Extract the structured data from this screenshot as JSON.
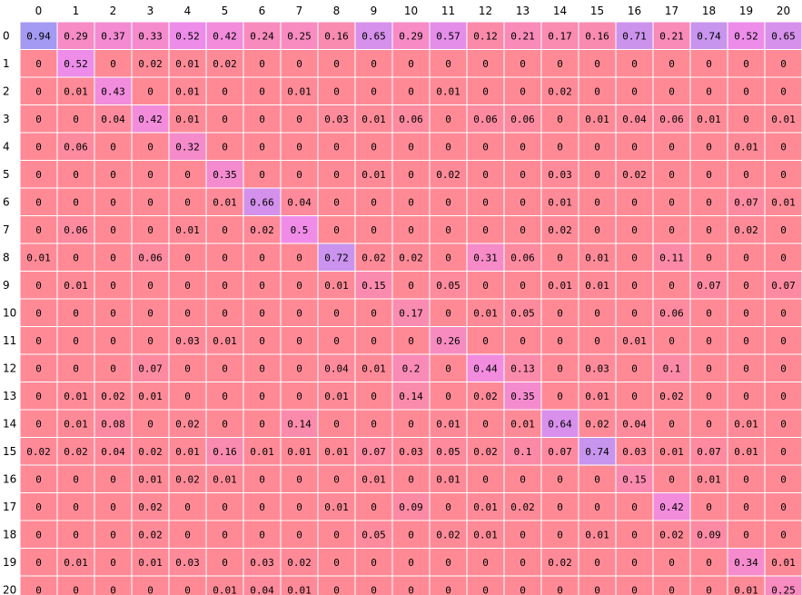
{
  "chart_data": {
    "type": "heatmap",
    "x_categories": [
      "0",
      "1",
      "2",
      "3",
      "4",
      "5",
      "6",
      "7",
      "8",
      "9",
      "10",
      "11",
      "12",
      "13",
      "14",
      "15",
      "16",
      "17",
      "18",
      "19",
      "20"
    ],
    "y_categories": [
      "0",
      "1",
      "2",
      "3",
      "4",
      "5",
      "6",
      "7",
      "8",
      "9",
      "10",
      "11",
      "12",
      "13",
      "14",
      "15",
      "16",
      "17",
      "18",
      "19",
      "20"
    ],
    "values": [
      [
        "0.94",
        "0.29",
        "0.37",
        "0.33",
        "0.52",
        "0.42",
        "0.24",
        "0.25",
        "0.16",
        "0.65",
        "0.29",
        "0.57",
        "0.12",
        "0.21",
        "0.17",
        "0.16",
        "0.71",
        "0.21",
        "0.74",
        "0.52",
        "0.65"
      ],
      [
        "0",
        "0.52",
        "0",
        "0.02",
        "0.01",
        "0.02",
        "0",
        "0",
        "0",
        "0",
        "0",
        "0",
        "0",
        "0",
        "0",
        "0",
        "0",
        "0",
        "0",
        "0",
        "0"
      ],
      [
        "0",
        "0.01",
        "0.43",
        "0",
        "0.01",
        "0",
        "0",
        "0.01",
        "0",
        "0",
        "0",
        "0.01",
        "0",
        "0",
        "0.02",
        "0",
        "0",
        "0",
        "0",
        "0",
        "0"
      ],
      [
        "0",
        "0",
        "0.04",
        "0.42",
        "0.01",
        "0",
        "0",
        "0",
        "0.03",
        "0.01",
        "0.06",
        "0",
        "0.06",
        "0.06",
        "0",
        "0.01",
        "0.04",
        "0.06",
        "0.01",
        "0",
        "0.01"
      ],
      [
        "0",
        "0.06",
        "0",
        "0",
        "0.32",
        "0",
        "0",
        "0",
        "0",
        "0",
        "0",
        "0",
        "0",
        "0",
        "0",
        "0",
        "0",
        "0",
        "0",
        "0.01",
        "0"
      ],
      [
        "0",
        "0",
        "0",
        "0",
        "0",
        "0.35",
        "0",
        "0",
        "0",
        "0.01",
        "0",
        "0.02",
        "0",
        "0",
        "0.03",
        "0",
        "0.02",
        "0",
        "0",
        "0",
        "0"
      ],
      [
        "0",
        "0",
        "0",
        "0",
        "0",
        "0.01",
        "0.66",
        "0.04",
        "0",
        "0",
        "0",
        "0",
        "0",
        "0",
        "0.01",
        "0",
        "0",
        "0",
        "0",
        "0.07",
        "0.01"
      ],
      [
        "0",
        "0.06",
        "0",
        "0",
        "0.01",
        "0",
        "0.02",
        "0.5",
        "0",
        "0",
        "0",
        "0",
        "0",
        "0",
        "0.02",
        "0",
        "0",
        "0",
        "0",
        "0.02",
        "0"
      ],
      [
        "0.01",
        "0",
        "0",
        "0.06",
        "0",
        "0",
        "0",
        "0",
        "0.72",
        "0.02",
        "0.02",
        "0",
        "0.31",
        "0.06",
        "0",
        "0.01",
        "0",
        "0.11",
        "0",
        "0",
        "0"
      ],
      [
        "0",
        "0.01",
        "0",
        "0",
        "0",
        "0",
        "0",
        "0",
        "0.01",
        "0.15",
        "0",
        "0.05",
        "0",
        "0",
        "0.01",
        "0.01",
        "0",
        "0",
        "0.07",
        "0",
        "0.07"
      ],
      [
        "0",
        "0",
        "0",
        "0",
        "0",
        "0",
        "0",
        "0",
        "0",
        "0",
        "0.17",
        "0",
        "0.01",
        "0.05",
        "0",
        "0",
        "0",
        "0.06",
        "0",
        "0",
        "0"
      ],
      [
        "0",
        "0",
        "0",
        "0",
        "0.03",
        "0.01",
        "0",
        "0",
        "0",
        "0",
        "0",
        "0.26",
        "0",
        "0",
        "0",
        "0",
        "0.01",
        "0",
        "0",
        "0",
        "0"
      ],
      [
        "0",
        "0",
        "0",
        "0.07",
        "0",
        "0",
        "0",
        "0",
        "0.04",
        "0.01",
        "0.2",
        "0",
        "0.44",
        "0.13",
        "0",
        "0.03",
        "0",
        "0.1",
        "0",
        "0",
        "0"
      ],
      [
        "0",
        "0.01",
        "0.02",
        "0.01",
        "0",
        "0",
        "0",
        "0",
        "0.01",
        "0",
        "0.14",
        "0",
        "0.02",
        "0.35",
        "0",
        "0.01",
        "0",
        "0.02",
        "0",
        "0",
        "0"
      ],
      [
        "0",
        "0.01",
        "0.08",
        "0",
        "0.02",
        "0",
        "0",
        "0.14",
        "0",
        "0",
        "0",
        "0.01",
        "0",
        "0.01",
        "0.64",
        "0.02",
        "0.04",
        "0",
        "0",
        "0.01",
        "0"
      ],
      [
        "0.02",
        "0.02",
        "0.04",
        "0.02",
        "0.01",
        "0.16",
        "0.01",
        "0.01",
        "0.01",
        "0.07",
        "0.03",
        "0.05",
        "0.02",
        "0.1",
        "0.07",
        "0.74",
        "0.03",
        "0.01",
        "0.07",
        "0.01",
        "0"
      ],
      [
        "0",
        "0",
        "0",
        "0.01",
        "0.02",
        "0.01",
        "0",
        "0",
        "0",
        "0.01",
        "0",
        "0.01",
        "0",
        "0",
        "0",
        "0",
        "0.15",
        "0",
        "0.01",
        "0",
        "0"
      ],
      [
        "0",
        "0",
        "0",
        "0.02",
        "0",
        "0",
        "0",
        "0",
        "0.01",
        "0",
        "0.09",
        "0",
        "0.01",
        "0.02",
        "0",
        "0",
        "0",
        "0.42",
        "0",
        "0",
        "0"
      ],
      [
        "0",
        "0",
        "0",
        "0.02",
        "0",
        "0",
        "0",
        "0",
        "0",
        "0.05",
        "0",
        "0.02",
        "0.01",
        "0",
        "0",
        "0.01",
        "0",
        "0.02",
        "0.09",
        "0",
        "0"
      ],
      [
        "0",
        "0.01",
        "0",
        "0.01",
        "0.03",
        "0",
        "0.03",
        "0.02",
        "0",
        "0",
        "0",
        "0",
        "0",
        "0",
        "0.02",
        "0",
        "0",
        "0",
        "0",
        "0.34",
        "0.01"
      ],
      [
        "0",
        "0",
        "0",
        "0",
        "0",
        "0.01",
        "0.04",
        "0.01",
        "0",
        "0",
        "0",
        "0",
        "0",
        "0",
        "0",
        "0",
        "0",
        "0",
        "0",
        "0.01",
        "0.25"
      ]
    ],
    "value_range": [
      0,
      1
    ],
    "colors": {
      "low": "#ff8a95",
      "mid": "#f08ce8",
      "high": "#9a9cf5",
      "grid": "#ffffff",
      "text": "#000000"
    }
  }
}
